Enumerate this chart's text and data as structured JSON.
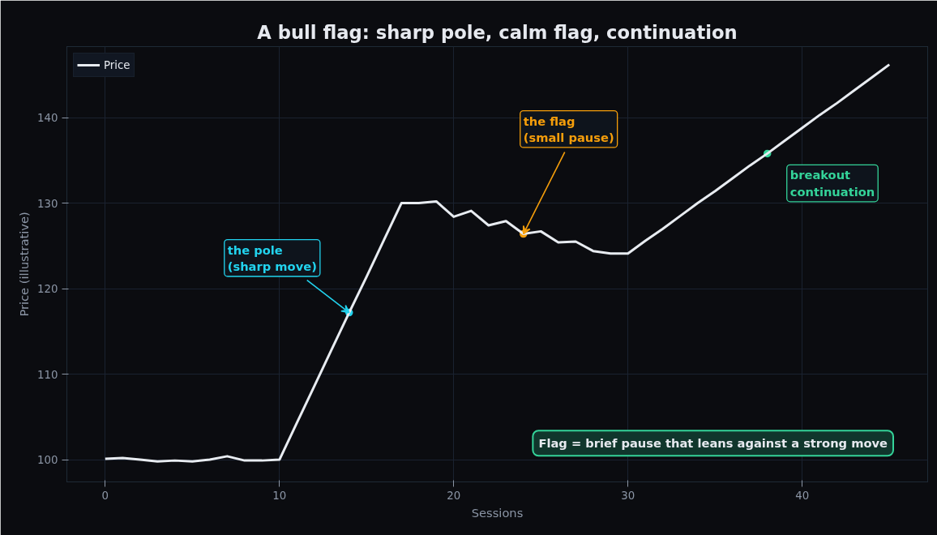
{
  "chart_data": {
    "type": "line",
    "title": "A bull flag: sharp pole, calm flag, continuation",
    "xlabel": "Sessions",
    "ylabel": "Price (illustrative)",
    "x": [
      0,
      1,
      2,
      3,
      4,
      5,
      6,
      7,
      8,
      9,
      10,
      11,
      12,
      13,
      14,
      15,
      16,
      17,
      18,
      19,
      20,
      21,
      22,
      23,
      24,
      25,
      26,
      27,
      28,
      29,
      30,
      31,
      32,
      33,
      34,
      35,
      36,
      37,
      38,
      39,
      40,
      41,
      42,
      43,
      44,
      45
    ],
    "series": [
      {
        "name": "Price",
        "color": "#e8ecf1",
        "values": [
          100.1,
          100.2,
          100.0,
          99.8,
          99.9,
          99.8,
          100.0,
          100.4,
          99.9,
          99.9,
          100.0,
          104.3,
          108.6,
          112.9,
          117.2,
          121.4,
          125.7,
          130.0,
          130.0,
          130.2,
          128.4,
          129.1,
          127.4,
          127.9,
          126.4,
          126.7,
          125.4,
          125.5,
          124.4,
          124.1,
          124.1,
          125.6,
          127.0,
          128.5,
          130.0,
          131.4,
          132.9,
          134.4,
          135.8,
          137.3,
          138.8,
          140.3,
          141.7,
          143.2,
          144.7,
          146.2
        ]
      }
    ],
    "annotations": [
      {
        "text": "the pole\n(sharp move)",
        "x": 14,
        "y": 117.2
      },
      {
        "text": "the flag\n(small pause)",
        "x": 24,
        "y": 126.4
      },
      {
        "text": "breakout\ncontinuation",
        "x": 38,
        "y": 135.8
      },
      "Flag = brief pause that leans against a strong move"
    ],
    "xlim": [
      -2.2,
      47.2
    ],
    "ylim": [
      97.4,
      148.3
    ],
    "xticks": [
      0,
      10,
      20,
      30,
      40
    ],
    "yticks": [
      100,
      110,
      120,
      130,
      140
    ],
    "grid": true,
    "legend": "top left",
    "line_style": "solid",
    "marker": "none"
  }
}
